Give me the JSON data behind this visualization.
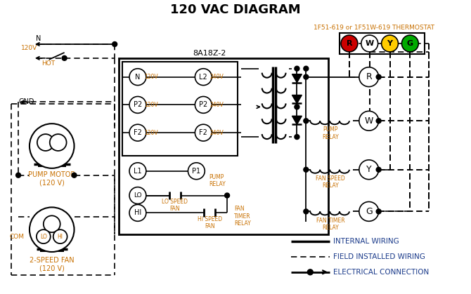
{
  "title": "120 VAC DIAGRAM",
  "background_color": "#ffffff",
  "thermostat_label": "1F51-619 or 1F51W-619 THERMOSTAT",
  "control_box_label": "8A18Z-2",
  "terminal_colors": [
    "#cc0000",
    "#ffffff",
    "#ffcc00",
    "#00aa00"
  ],
  "terminal_labels": [
    "R",
    "W",
    "Y",
    "G"
  ],
  "pump_motor_label": "PUMP MOTOR\n(120 V)",
  "fan_label": "2-SPEED FAN\n(120 V)",
  "legend_items": [
    "INTERNAL WIRING",
    "FIELD INSTALLED WIRING",
    "ELECTRICAL CONNECTION"
  ],
  "text_color_orange": "#c87000",
  "text_color_blue": "#1a3a8a",
  "relay_texts": [
    "PUMP\nRELAY",
    "FAN SPEED\nRELAY",
    "FAN TIMER\nRELAY"
  ]
}
